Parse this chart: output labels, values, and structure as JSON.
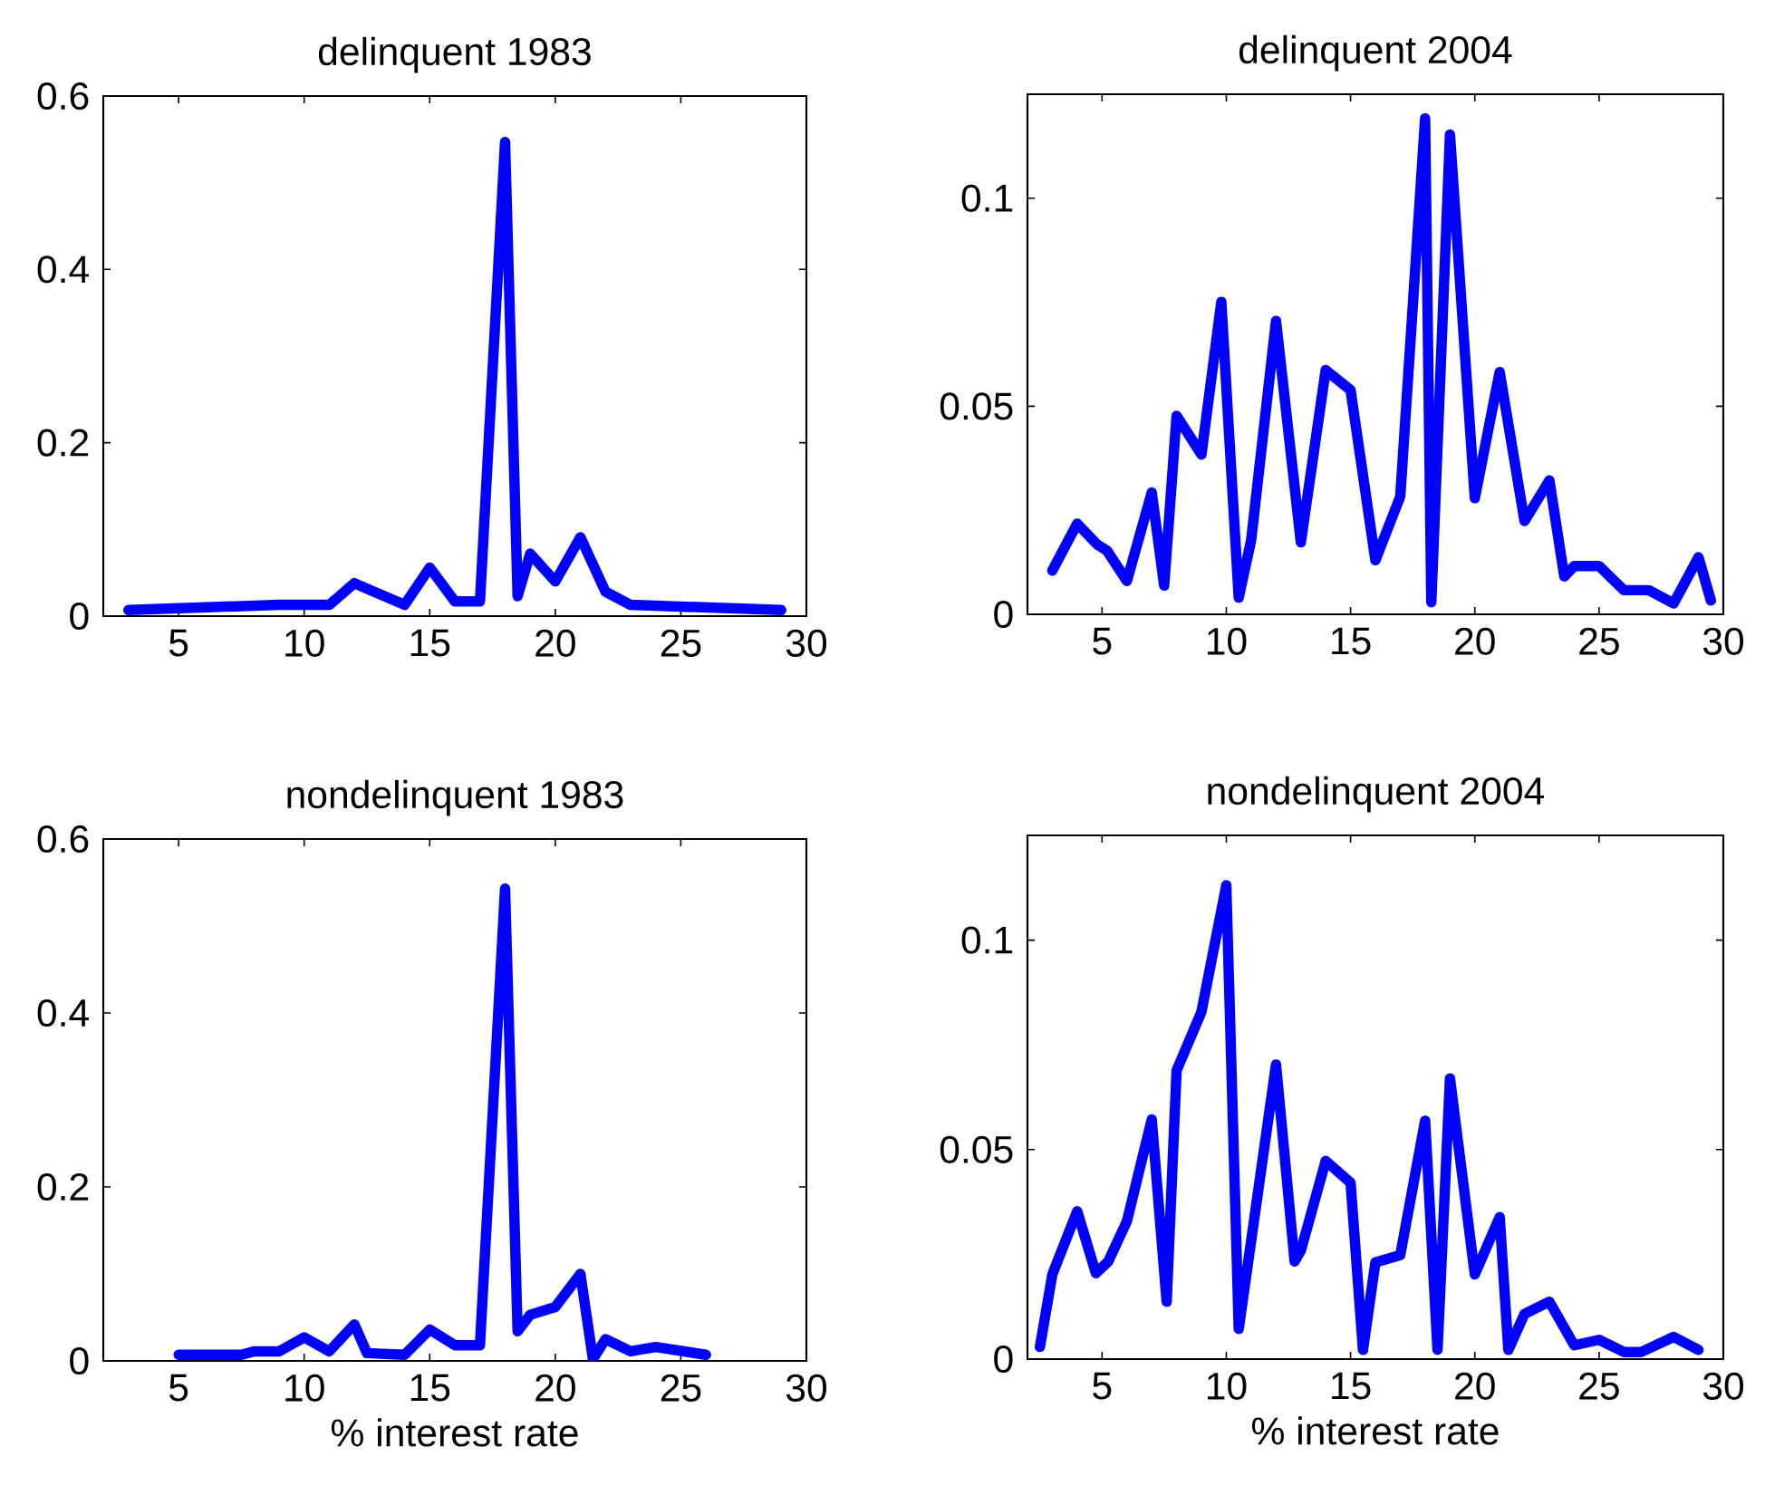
{
  "chart_data": [
    {
      "type": "line",
      "title": "delinquent 1983",
      "color": "#0000ff",
      "line_style": "solid",
      "x": [
        3,
        9,
        11,
        12,
        14,
        15,
        16,
        17,
        18,
        18.5,
        19,
        20,
        21,
        22,
        23,
        29
      ],
      "values": [
        0.007,
        0.013,
        0.013,
        0.038,
        0.013,
        0.056,
        0.017,
        0.017,
        0.547,
        0.023,
        0.072,
        0.04,
        0.091,
        0.028,
        0.013,
        0.007
      ],
      "xlim": [
        2,
        30
      ],
      "ylim": [
        0,
        0.6
      ],
      "xticks": [
        5,
        10,
        15,
        20,
        25,
        30
      ],
      "yticks": [
        0,
        0.2,
        0.4,
        0.6
      ]
    },
    {
      "type": "line",
      "title": "delinquent 2004",
      "color": "#0000ff",
      "line_style": "solid",
      "x": [
        3,
        4,
        4.8,
        5.2,
        6,
        7,
        7.5,
        8,
        9,
        9.8,
        10.5,
        11,
        12,
        13,
        14,
        15,
        16,
        17,
        18,
        18.25,
        19,
        20,
        21,
        22,
        23,
        23.6,
        24,
        25,
        26,
        27,
        28,
        29,
        29.5
      ],
      "values": [
        0.0105,
        0.0218,
        0.0168,
        0.0153,
        0.008,
        0.0293,
        0.0069,
        0.0477,
        0.0384,
        0.0751,
        0.004,
        0.0178,
        0.0705,
        0.0173,
        0.0587,
        0.0539,
        0.013,
        0.0283,
        0.1192,
        0.0029,
        0.1153,
        0.0279,
        0.0582,
        0.0224,
        0.0322,
        0.0091,
        0.0116,
        0.0116,
        0.0058,
        0.0058,
        0.0026,
        0.0137,
        0.0033
      ],
      "xlim": [
        2,
        30
      ],
      "ylim": [
        0,
        0.125
      ],
      "xticks": [
        5,
        10,
        15,
        20,
        25,
        30
      ],
      "yticks": [
        0,
        0.05,
        0.1
      ]
    },
    {
      "type": "line",
      "title": "nondelinquent 1983",
      "xlabel": "% interest rate",
      "color": "#0000ff",
      "line_style": "solid",
      "x": [
        5,
        7.5,
        8,
        9,
        10,
        11,
        12,
        12.5,
        14,
        15,
        16,
        17,
        18,
        18.5,
        19,
        20,
        21,
        21.5,
        22,
        23,
        24,
        26
      ],
      "values": [
        0.007,
        0.007,
        0.011,
        0.011,
        0.027,
        0.011,
        0.042,
        0.009,
        0.007,
        0.036,
        0.018,
        0.018,
        0.543,
        0.034,
        0.053,
        0.062,
        0.1,
        0.002,
        0.025,
        0.011,
        0.016,
        0.007
      ],
      "xlim": [
        2,
        30
      ],
      "ylim": [
        0,
        0.6
      ],
      "xticks": [
        5,
        10,
        15,
        20,
        25,
        30
      ],
      "yticks": [
        0,
        0.2,
        0.4,
        0.6
      ]
    },
    {
      "type": "line",
      "title": "nondelinquent 2004",
      "xlabel": "% interest rate",
      "color": "#0000ff",
      "line_style": "solid",
      "x": [
        2.5,
        3,
        4,
        4.75,
        5.25,
        6,
        7,
        7.6,
        8,
        9,
        10,
        10.5,
        12,
        12.75,
        13,
        14,
        15,
        15.5,
        16,
        17,
        18,
        18.5,
        19,
        20,
        21,
        21.35,
        22,
        23,
        24,
        25,
        26,
        26.7,
        28,
        29
      ],
      "values": [
        0.0029,
        0.0202,
        0.0353,
        0.0205,
        0.0233,
        0.0329,
        0.0572,
        0.0137,
        0.0689,
        0.0829,
        0.1131,
        0.0072,
        0.0703,
        0.0233,
        0.0259,
        0.0473,
        0.0421,
        0.0022,
        0.0231,
        0.0248,
        0.0569,
        0.0022,
        0.067,
        0.0202,
        0.0339,
        0.0022,
        0.0108,
        0.0137,
        0.0033,
        0.0046,
        0.0017,
        0.0017,
        0.0053,
        0.0022
      ],
      "xlim": [
        2,
        30
      ],
      "ylim": [
        0,
        0.125
      ],
      "xticks": [
        5,
        10,
        15,
        20,
        25,
        30
      ],
      "yticks": [
        0,
        0.05,
        0.1
      ]
    }
  ]
}
